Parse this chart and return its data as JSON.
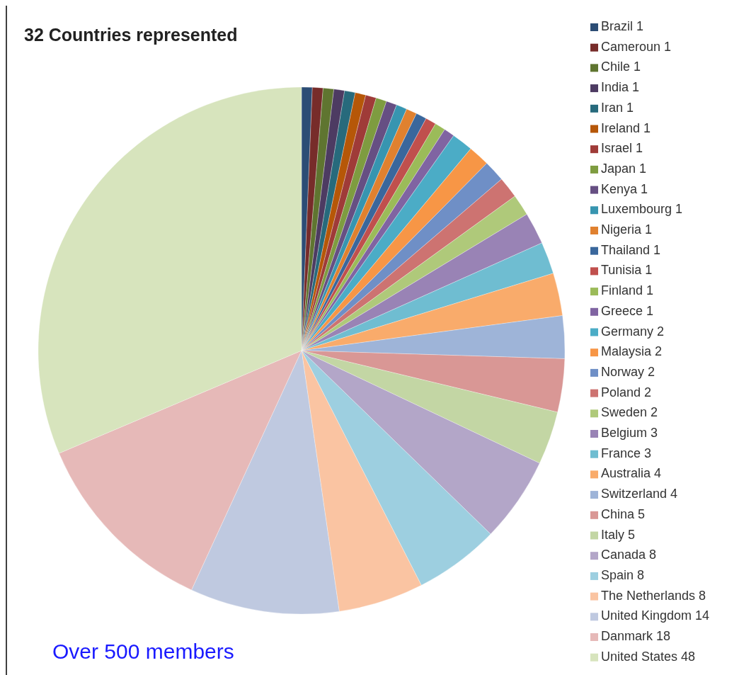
{
  "chart_data": {
    "type": "pie",
    "title": "32 Countries represented",
    "categories": [
      "Brazil 1",
      "Cameroun 1",
      "Chile 1",
      "India 1",
      "Iran 1",
      "Ireland 1",
      "Israel 1",
      "Japan 1",
      "Kenya 1",
      "Luxembourg 1",
      "Nigeria 1",
      "Thailand 1",
      "Tunisia 1",
      "Finland 1",
      "Greece 1",
      "Germany 2",
      "Malaysia 2",
      "Norway 2",
      "Poland 2",
      "Sweden 2",
      "Belgium 3",
      "France 3",
      "Australia 4",
      "Switzerland 4",
      "China 5",
      "Italy 5",
      "Canada 8",
      "Spain 8",
      "The Netherlands 8",
      "United Kingdom 14",
      "Danmark 18",
      "United States 48"
    ],
    "values": [
      1,
      1,
      1,
      1,
      1,
      1,
      1,
      1,
      1,
      1,
      1,
      1,
      1,
      1,
      1,
      2,
      2,
      2,
      2,
      2,
      3,
      3,
      4,
      4,
      5,
      5,
      8,
      8,
      8,
      14,
      18,
      48
    ],
    "colors": [
      "#2c4d75",
      "#772c2a",
      "#5f7530",
      "#4d3b62",
      "#276a7c",
      "#b65708",
      "#9f3b38",
      "#7e9c40",
      "#664f83",
      "#3795b0",
      "#e0812f",
      "#3a679c",
      "#c0504d",
      "#9bbb59",
      "#8064a2",
      "#4bacc6",
      "#f79646",
      "#6f8fc6",
      "#cd7371",
      "#afc97a",
      "#9983b5",
      "#6fbdd1",
      "#f9ab6b",
      "#9eb4d8",
      "#d99795",
      "#c3d6a4",
      "#b3a6c8",
      "#9dcfe0",
      "#fac4a2",
      "#bfc9e0",
      "#e6b9b8",
      "#d7e4bd"
    ],
    "legend": "right",
    "annotations": [
      "Over 500 members"
    ]
  }
}
